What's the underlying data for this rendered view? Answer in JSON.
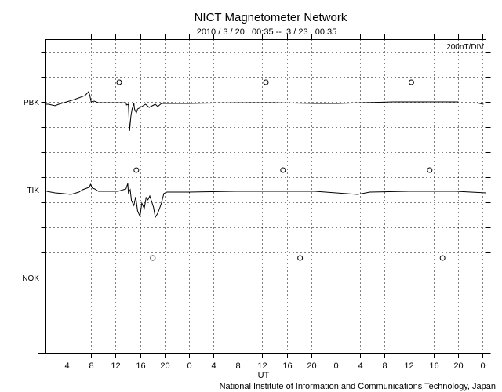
{
  "chart_data": {
    "type": "line",
    "title": "NICT Magnetometer Network",
    "subtitle": "2010 / 3 / 20   00:35 --  3 / 23   00:35",
    "scale_label": "200nT/DIV",
    "nT_per_div": 200,
    "xlabel": "UT",
    "x_unit": "hours since 2010/3/20 00:35",
    "xlim": [
      0,
      72
    ],
    "x_tick_labels": [
      "4",
      "8",
      "12",
      "16",
      "20",
      "0",
      "4",
      "8",
      "12",
      "16",
      "20",
      "0",
      "4",
      "8",
      "12",
      "16",
      "20",
      "0"
    ],
    "x_tick_hours": [
      3.417,
      7.417,
      11.417,
      15.417,
      19.417,
      23.417,
      27.417,
      31.417,
      35.417,
      39.417,
      43.417,
      47.417,
      51.417,
      55.417,
      59.417,
      63.417,
      67.417,
      71.417
    ],
    "grid": true,
    "series": [
      {
        "name": "PBK",
        "unit": "nT",
        "noon_marker_hours": [
          12.0,
          36.0,
          59.8
        ],
        "segments": [
          [
            [
              0,
              0
            ],
            [
              0.4,
              0
            ],
            [
              1.5,
              -12
            ],
            [
              2.1,
              0
            ],
            [
              3.4,
              19
            ],
            [
              4.7,
              38
            ],
            [
              6.4,
              69
            ],
            [
              7.0,
              100
            ],
            [
              7.2,
              69
            ],
            [
              7.4,
              19
            ],
            [
              7.9,
              25
            ],
            [
              8.6,
              12
            ],
            [
              10.5,
              12
            ],
            [
              13.1,
              12
            ],
            [
              13.2,
              -6
            ],
            [
              13.5,
              0
            ],
            [
              13.7,
              -212
            ],
            [
              13.9,
              -100
            ],
            [
              14.1,
              -38
            ],
            [
              14.4,
              6
            ],
            [
              14.5,
              -38
            ],
            [
              14.8,
              -69
            ],
            [
              15.0,
              -38
            ],
            [
              15.7,
              -19
            ],
            [
              16.3,
              0
            ],
            [
              16.9,
              -25
            ],
            [
              17.9,
              0
            ],
            [
              18.3,
              -19
            ],
            [
              18.9,
              6
            ],
            [
              20.2,
              6
            ],
            [
              23.4,
              6
            ],
            [
              31.1,
              12
            ],
            [
              37.5,
              12
            ],
            [
              43.9,
              6
            ],
            [
              47.8,
              6
            ],
            [
              51.7,
              12
            ],
            [
              56.8,
              19
            ],
            [
              63.2,
              19
            ],
            [
              67.5,
              19
            ]
          ],
          [
            [
              70.5,
              12
            ],
            [
              71.6,
              0
            ]
          ]
        ]
      },
      {
        "name": "TIK",
        "unit": "nT",
        "noon_marker_hours": [
          14.8,
          38.8,
          62.8
        ],
        "segments": [
          [
            [
              0.1,
              6
            ],
            [
              1.5,
              -6
            ],
            [
              2.8,
              -12
            ],
            [
              4.1,
              -19
            ],
            [
              5.4,
              0
            ],
            [
              6.0,
              19
            ],
            [
              6.7,
              31
            ],
            [
              7.1,
              38
            ],
            [
              7.3,
              62
            ],
            [
              7.6,
              31
            ],
            [
              8.0,
              25
            ],
            [
              8.6,
              6
            ],
            [
              11.8,
              6
            ],
            [
              13.1,
              25
            ],
            [
              13.4,
              69
            ],
            [
              13.5,
              -6
            ],
            [
              13.8,
              19
            ],
            [
              14.0,
              -69
            ],
            [
              14.4,
              -106
            ],
            [
              14.7,
              -38
            ],
            [
              15.0,
              -150
            ],
            [
              15.4,
              -194
            ],
            [
              15.7,
              -88
            ],
            [
              16.1,
              -131
            ],
            [
              16.4,
              -44
            ],
            [
              16.7,
              -62
            ],
            [
              17.0,
              -31
            ],
            [
              17.6,
              -119
            ],
            [
              17.9,
              -200
            ],
            [
              18.3,
              -169
            ],
            [
              18.6,
              -131
            ],
            [
              18.9,
              -88
            ],
            [
              19.3,
              -12
            ],
            [
              19.8,
              0
            ],
            [
              23.4,
              0
            ],
            [
              31.1,
              6
            ],
            [
              44.0,
              6
            ],
            [
              51.0,
              -19
            ],
            [
              53.0,
              0
            ],
            [
              59.4,
              6
            ],
            [
              67.1,
              6
            ],
            [
              72,
              -6
            ]
          ]
        ]
      },
      {
        "name": "NOK",
        "unit": "nT",
        "noon_marker_hours": [
          17.5,
          41.6,
          64.9
        ],
        "segments": []
      }
    ]
  },
  "footer": "National Institute of Information and Communications Technology, Japan"
}
